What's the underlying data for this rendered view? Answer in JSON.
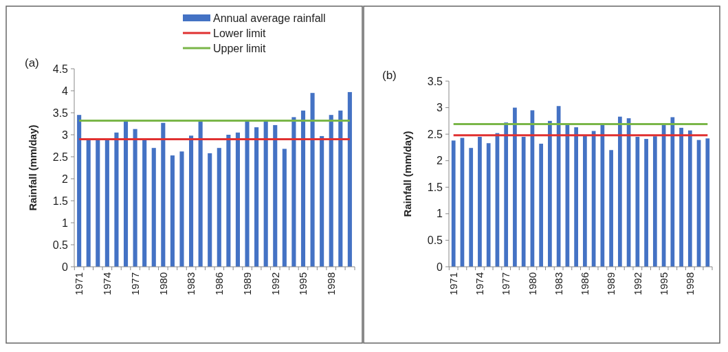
{
  "chart_data": [
    {
      "type": "bar",
      "title": "(a)",
      "ylabel": "Rainfall (mm/day)",
      "categories": [
        "1971",
        null,
        null,
        "1974",
        null,
        null,
        "1977",
        null,
        null,
        "1980",
        null,
        null,
        "1983",
        null,
        null,
        "1986",
        null,
        null,
        "1989",
        null,
        null,
        "1992",
        null,
        null,
        "1995",
        null,
        null,
        "1998",
        null,
        null
      ],
      "series": [
        {
          "name": "Annual average rainfall",
          "type": "bar",
          "color": "#4472c4",
          "values": [
            3.45,
            2.88,
            2.88,
            2.88,
            3.05,
            3.3,
            3.13,
            2.88,
            2.7,
            3.27,
            2.53,
            2.62,
            2.98,
            3.3,
            2.58,
            2.7,
            3.0,
            3.05,
            3.3,
            3.17,
            3.3,
            3.22,
            2.68,
            3.4,
            3.55,
            3.95,
            2.97,
            3.45,
            3.55,
            3.97
          ]
        },
        {
          "name": "Lower limit",
          "type": "line",
          "color": "#e03030",
          "values": [
            2.9,
            2.9,
            2.9,
            2.9,
            2.9,
            2.9,
            2.9,
            2.9,
            2.9,
            2.9,
            2.9,
            2.9,
            2.9,
            2.9,
            2.9,
            2.9,
            2.9,
            2.9,
            2.9,
            2.9,
            2.9,
            2.9,
            2.9,
            2.9,
            2.9,
            2.9,
            2.9,
            2.9,
            2.9,
            2.9
          ]
        },
        {
          "name": "Upper limit",
          "type": "line",
          "color": "#7ab648",
          "values": [
            3.32,
            3.32,
            3.32,
            3.32,
            3.32,
            3.32,
            3.32,
            3.32,
            3.32,
            3.32,
            3.32,
            3.32,
            3.32,
            3.32,
            3.32,
            3.32,
            3.32,
            3.32,
            3.32,
            3.32,
            3.32,
            3.32,
            3.32,
            3.32,
            3.32,
            3.32,
            3.32,
            3.32,
            3.32,
            3.32
          ]
        }
      ],
      "ylim": [
        0,
        4.5
      ],
      "yticks": [
        0,
        0.5,
        1,
        1.5,
        2,
        2.5,
        3,
        3.5,
        4,
        4.5
      ],
      "legend": "top right",
      "grid": false
    },
    {
      "type": "bar",
      "title": "(b)",
      "ylabel": "Rainfall (mm/day)",
      "categories": [
        "1971",
        null,
        null,
        "1974",
        null,
        null,
        "1977",
        null,
        null,
        "1980",
        null,
        null,
        "1983",
        null,
        null,
        "1986",
        null,
        null,
        "1989",
        null,
        null,
        "1992",
        null,
        null,
        "1995",
        null,
        null,
        "1998",
        null,
        null
      ],
      "series": [
        {
          "type": "bar",
          "color": "#4472c4",
          "values": [
            2.38,
            2.43,
            2.24,
            2.45,
            2.33,
            2.52,
            2.72,
            3.0,
            2.45,
            2.95,
            2.32,
            2.75,
            3.03,
            2.67,
            2.63,
            2.47,
            2.56,
            2.67,
            2.2,
            2.83,
            2.8,
            2.45,
            2.41,
            2.46,
            2.67,
            2.82,
            2.62,
            2.57,
            2.39,
            2.42
          ]
        },
        {
          "type": "line",
          "color": "#e03030",
          "values": [
            2.48,
            2.48,
            2.48,
            2.48,
            2.48,
            2.48,
            2.48,
            2.48,
            2.48,
            2.48,
            2.48,
            2.48,
            2.48,
            2.48,
            2.48,
            2.48,
            2.48,
            2.48,
            2.48,
            2.48,
            2.48,
            2.48,
            2.48,
            2.48,
            2.48,
            2.48,
            2.48,
            2.48,
            2.48,
            2.48
          ]
        },
        {
          "type": "line",
          "color": "#7ab648",
          "values": [
            2.69,
            2.69,
            2.69,
            2.69,
            2.69,
            2.69,
            2.69,
            2.69,
            2.69,
            2.69,
            2.69,
            2.69,
            2.69,
            2.69,
            2.69,
            2.69,
            2.69,
            2.69,
            2.69,
            2.69,
            2.69,
            2.69,
            2.69,
            2.69,
            2.69,
            2.69,
            2.69,
            2.69,
            2.69,
            2.69
          ]
        }
      ],
      "ylim": [
        0,
        3.5
      ],
      "yticks": [
        0,
        0.5,
        1,
        1.5,
        2,
        2.5,
        3,
        3.5
      ],
      "grid": false
    }
  ]
}
